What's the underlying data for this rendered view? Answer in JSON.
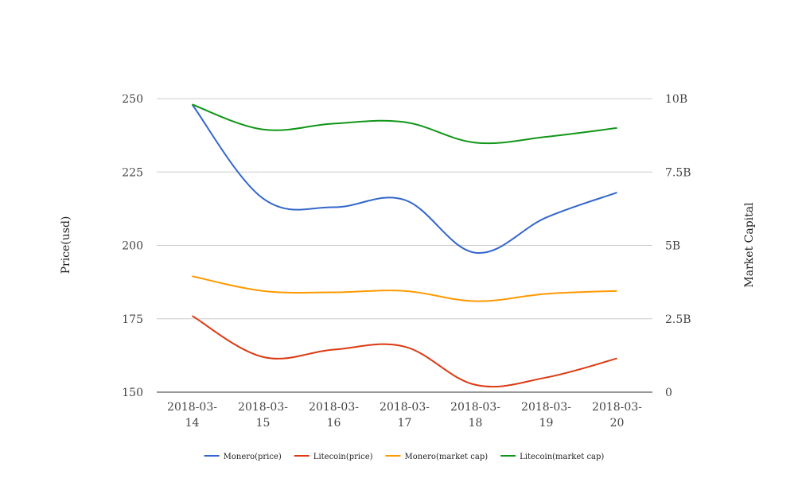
{
  "chart_data": {
    "type": "line",
    "categories": [
      "2018-03-14",
      "2018-03-15",
      "2018-03-16",
      "2018-03-17",
      "2018-03-18",
      "2018-03-19",
      "2018-03-20"
    ],
    "series": [
      {
        "name": "Monero(price)",
        "axis": "left",
        "color": "#3366cc",
        "values": [
          248,
          216,
          213,
          215.5,
          197.5,
          209.5,
          218
        ]
      },
      {
        "name": "Litecoin(price)",
        "axis": "left",
        "color": "#dc3912",
        "values": [
          176,
          162,
          164.5,
          165.5,
          152.5,
          155,
          161.5
        ]
      },
      {
        "name": "Monero(market cap)",
        "axis": "right",
        "color": "#ff9900",
        "values": [
          3950000000,
          3450000000,
          3400000000,
          3450000000,
          3100000000,
          3350000000,
          3450000000
        ]
      },
      {
        "name": "Litecoin(market cap)",
        "axis": "right",
        "color": "#109618",
        "values": [
          9800000000,
          8950000000,
          9150000000,
          9200000000,
          8500000000,
          8700000000,
          9000000000
        ]
      }
    ],
    "ylabel": "Price(usd)",
    "y2label": "Market Capital",
    "ylim": [
      150,
      250
    ],
    "y2lim": [
      0,
      10000000000
    ],
    "yticks": [
      "150",
      "175",
      "200",
      "225",
      "250"
    ],
    "y2ticks": [
      "0",
      "2.5B",
      "5B",
      "7.5B",
      "10B"
    ],
    "grid": true,
    "legend_position": "bottom"
  }
}
